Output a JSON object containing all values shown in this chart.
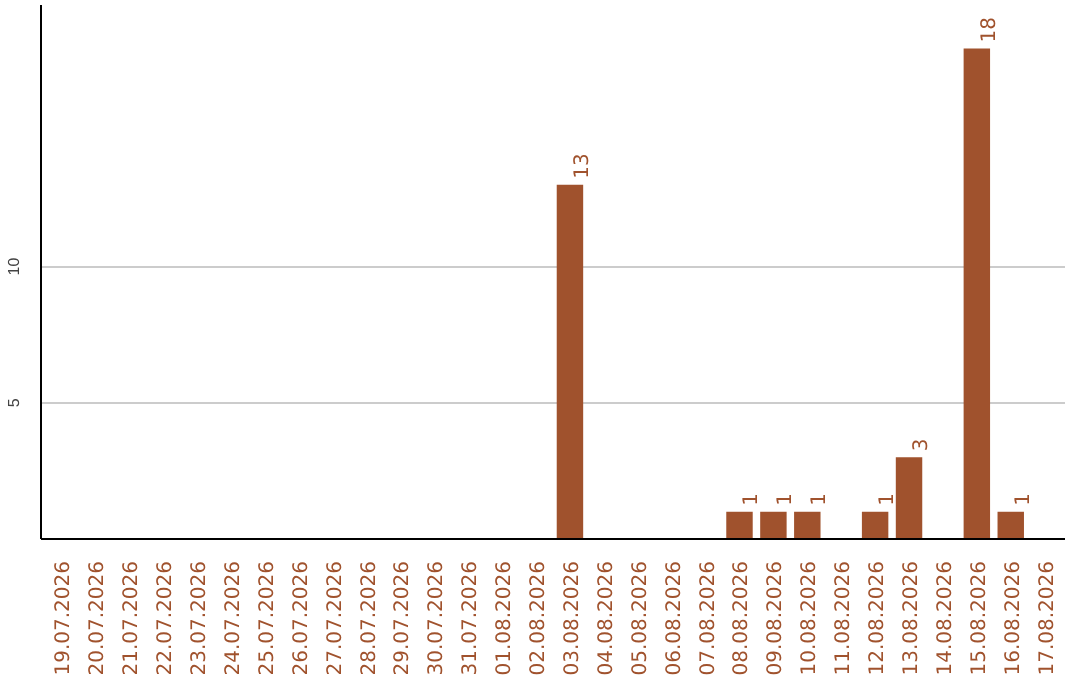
{
  "chart_data": {
    "type": "bar",
    "categories": [
      "19.07.2026",
      "20.07.2026",
      "21.07.2026",
      "22.07.2026",
      "23.07.2026",
      "24.07.2026",
      "25.07.2026",
      "26.07.2026",
      "27.07.2026",
      "28.07.2026",
      "29.07.2026",
      "30.07.2026",
      "31.07.2026",
      "01.08.2026",
      "02.08.2026",
      "03.08.2026",
      "04.08.2026",
      "05.08.2026",
      "06.08.2026",
      "07.08.2026",
      "08.08.2026",
      "09.08.2026",
      "10.08.2026",
      "11.08.2026",
      "12.08.2026",
      "13.08.2026",
      "14.08.2026",
      "15.08.2026",
      "16.08.2026",
      "17.08.2026"
    ],
    "values": [
      0,
      0,
      0,
      0,
      0,
      0,
      0,
      0,
      0,
      0,
      0,
      0,
      0,
      0,
      0,
      13,
      0,
      0,
      0,
      0,
      1,
      1,
      1,
      0,
      1,
      3,
      0,
      18,
      1,
      0
    ],
    "value_labels": [
      null,
      null,
      null,
      null,
      null,
      null,
      null,
      null,
      null,
      null,
      null,
      null,
      null,
      null,
      null,
      "13",
      null,
      null,
      null,
      null,
      "1",
      "1",
      "1",
      null,
      "1",
      "3",
      null,
      "18",
      "1",
      null
    ],
    "color": "#a0522d",
    "ylim": [
      0,
      19.6
    ],
    "yticks": [
      5,
      10
    ],
    "grid": "y"
  }
}
